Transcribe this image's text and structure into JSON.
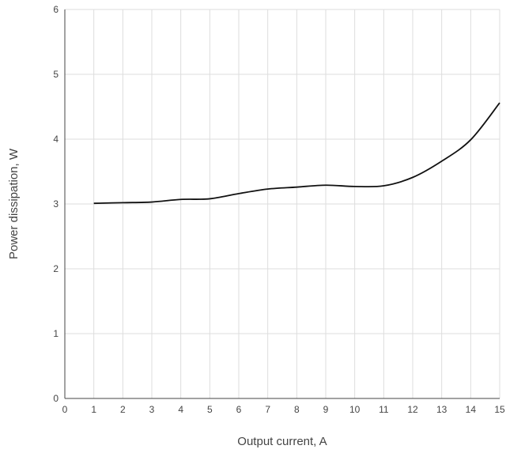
{
  "chart_data": {
    "type": "line",
    "xlabel": "Output current, A",
    "ylabel": "Power dissipation, W",
    "xlim": [
      0,
      15
    ],
    "ylim": [
      0,
      6
    ],
    "x_ticks": [
      "0",
      "1",
      "2",
      "3",
      "4",
      "5",
      "6",
      "7",
      "8",
      "9",
      "10",
      "11",
      "12",
      "13",
      "14",
      "15"
    ],
    "y_ticks": [
      "0",
      "1",
      "2",
      "3",
      "4",
      "5",
      "6"
    ],
    "grid": true,
    "legend": "none",
    "series": [
      {
        "color": "#111111",
        "x": [
          1,
          2,
          3,
          4,
          5,
          6,
          7,
          8,
          9,
          10,
          11,
          12,
          13,
          14,
          15
        ],
        "y": [
          3.01,
          3.02,
          3.03,
          3.07,
          3.08,
          3.16,
          3.23,
          3.26,
          3.29,
          3.27,
          3.28,
          3.41,
          3.66,
          3.99,
          4.56
        ]
      }
    ]
  }
}
